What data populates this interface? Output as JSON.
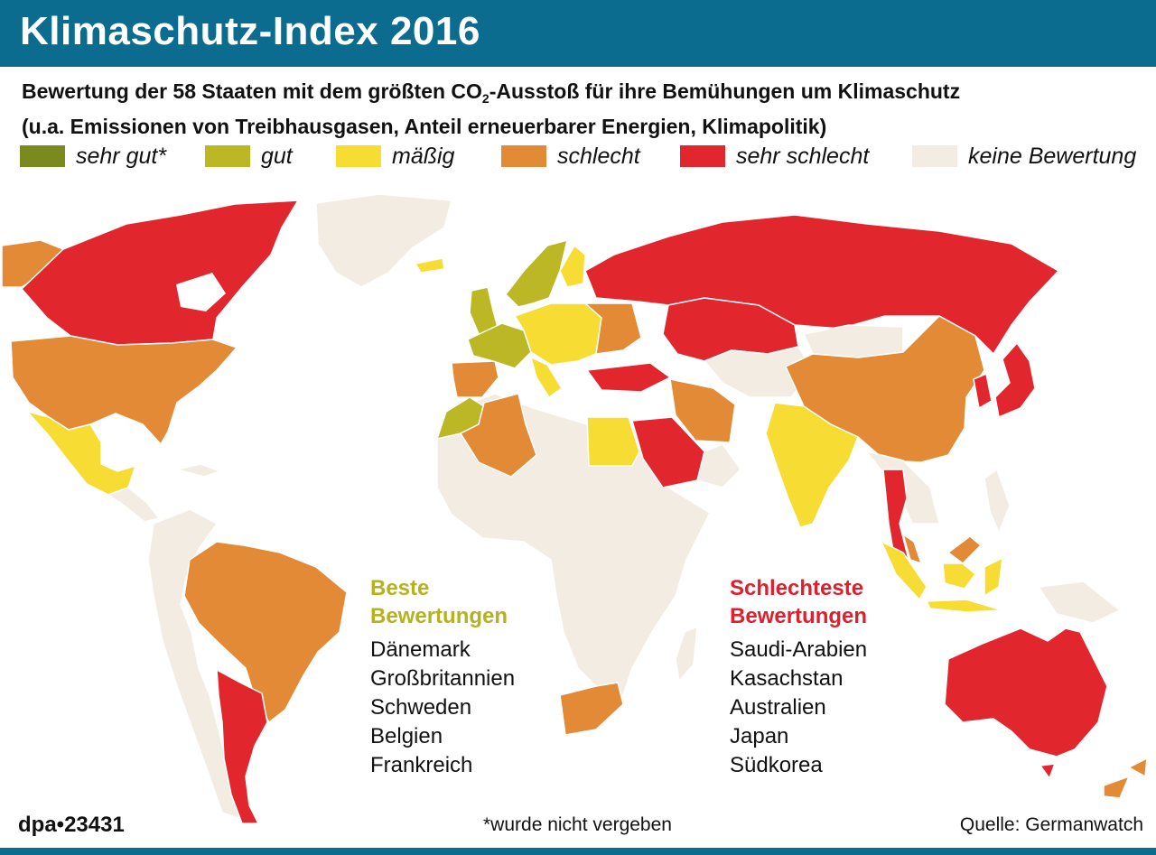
{
  "title": "Klimaschutz-Index 2016",
  "subtitle": {
    "line1_pre": "Bewertung der 58 Staaten mit dem größten CO",
    "line1_sub": "2",
    "line1_post": "-Ausstoß für ihre Bemühungen um Klimaschutz",
    "line2": "(u.a. Emissionen von Treibhausgasen, Anteil erneuerbarer Energien, Klimapolitik)"
  },
  "colors": {
    "header": "#0b6c8f",
    "very_good": "#7a8a1e",
    "good": "#bcb724",
    "moderate": "#f7dc34",
    "poor": "#e28a35",
    "very_poor": "#e1262e",
    "no_rating": "#f3ece2",
    "border": "#ffffff",
    "best_title": "#b5b21e",
    "worst_title": "#e01f2e"
  },
  "legend": [
    {
      "label": "sehr gut*",
      "color": "#7a8a1e"
    },
    {
      "label": "gut",
      "color": "#bcb724"
    },
    {
      "label": "mäßig",
      "color": "#f7dc34"
    },
    {
      "label": "schlecht",
      "color": "#e28a35"
    },
    {
      "label": "sehr schlecht",
      "color": "#e1262e"
    },
    {
      "label": "keine Bewertung",
      "color": "#f3ece2"
    }
  ],
  "best": {
    "title1": "Beste",
    "title2": "Bewertungen",
    "items": [
      "Dänemark",
      "Großbritannien",
      "Schweden",
      "Belgien",
      "Frankreich"
    ]
  },
  "worst": {
    "title1": "Schlechteste",
    "title2": "Bewertungen",
    "items": [
      "Saudi-Arabien",
      "Kasachstan",
      "Australien",
      "Japan",
      "Südkorea"
    ]
  },
  "footer": {
    "code": "dpa•23431",
    "footnote": "*wurde nicht vergeben",
    "source": "Quelle: Germanwatch"
  },
  "map_regions": [
    {
      "name": "Kanada",
      "rating": "very_poor"
    },
    {
      "name": "Alaska",
      "rating": "poor"
    },
    {
      "name": "USA",
      "rating": "poor"
    },
    {
      "name": "Mexiko",
      "rating": "moderate"
    },
    {
      "name": "Brasilien",
      "rating": "poor"
    },
    {
      "name": "Argentinien",
      "rating": "very_poor"
    },
    {
      "name": "Russland",
      "rating": "very_poor"
    },
    {
      "name": "Kasachstan",
      "rating": "very_poor"
    },
    {
      "name": "China",
      "rating": "poor"
    },
    {
      "name": "Indien",
      "rating": "moderate"
    },
    {
      "name": "Iran",
      "rating": "very_poor"
    },
    {
      "name": "Saudi-Arabien",
      "rating": "very_poor"
    },
    {
      "name": "Türkei",
      "rating": "very_poor"
    },
    {
      "name": "Ägypten",
      "rating": "moderate"
    },
    {
      "name": "Algerien",
      "rating": "poor"
    },
    {
      "name": "Marokko",
      "rating": "good"
    },
    {
      "name": "Südafrika",
      "rating": "poor"
    },
    {
      "name": "Australien",
      "rating": "very_poor"
    },
    {
      "name": "Japan",
      "rating": "very_poor"
    },
    {
      "name": "Südkorea",
      "rating": "very_poor"
    },
    {
      "name": "Thailand",
      "rating": "very_poor"
    },
    {
      "name": "Indonesien",
      "rating": "moderate"
    },
    {
      "name": "Malaysia",
      "rating": "poor"
    },
    {
      "name": "Skandinavien",
      "rating": "good"
    },
    {
      "name": "Großbritannien",
      "rating": "good"
    },
    {
      "name": "Frankreich",
      "rating": "good"
    },
    {
      "name": "Iberien",
      "rating": "poor"
    },
    {
      "name": "Mitteleuropa",
      "rating": "moderate"
    },
    {
      "name": "Neuseeland",
      "rating": "poor"
    },
    {
      "name": "Grönland",
      "rating": "no_rating"
    },
    {
      "name": "Afrika (übrige)",
      "rating": "no_rating"
    },
    {
      "name": "Südamerika (übrige)",
      "rating": "no_rating"
    }
  ]
}
